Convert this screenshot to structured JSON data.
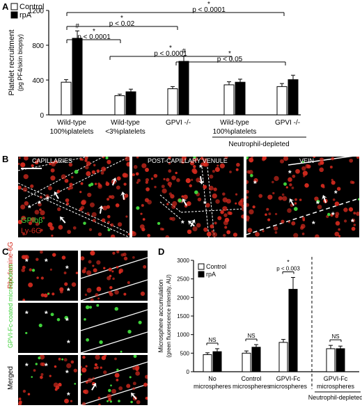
{
  "panels": {
    "a": "A",
    "b": "B",
    "c": "C",
    "d": "D"
  },
  "colors": {
    "control": "#ffffff",
    "rpA": "#000000",
    "red_cell": "#d42a1e",
    "green_cell": "#3fd13a"
  },
  "chart_data": [
    {
      "type": "bar",
      "panel": "A",
      "ylabel": "Platelet recruitment",
      "ylabel2": "(pg PF4/skin biopsy)",
      "ylim": [
        0,
        1200
      ],
      "yticks": [
        0,
        400,
        800,
        1200
      ],
      "legend": [
        "Control",
        "rpA"
      ],
      "legend_position": "top-left",
      "categories": [
        {
          "line1": "Wild-type",
          "line2": "100%platelets"
        },
        {
          "line1": "Wild-type",
          "line2": "<3%platelets"
        },
        {
          "line1": "GPVI -/-",
          "line2": ""
        },
        {
          "line1": "Wild-type",
          "line2": "100%platelets"
        },
        {
          "line1": "GPVI -/-",
          "line2": ""
        }
      ],
      "series": [
        {
          "name": "Control",
          "values": [
            375,
            220,
            300,
            345,
            325
          ],
          "errors": [
            30,
            18,
            25,
            35,
            35
          ]
        },
        {
          "name": "rpA",
          "values": [
            880,
            265,
            615,
            375,
            405
          ],
          "errors": [
            85,
            30,
            60,
            35,
            50
          ]
        }
      ],
      "hash_marks": [
        "#",
        "#"
      ],
      "group_label": "Neutrophil-depleted",
      "comparisons": [
        {
          "star": "*",
          "p": "p < 0.0001"
        },
        {
          "star": "*",
          "p": "p < 0.02"
        },
        {
          "star": "*",
          "p": "p < 0.0001"
        },
        {
          "star": "*",
          "p": "p < 0.0001"
        },
        {
          "star": "*",
          "p": "p < 0.05"
        }
      ]
    },
    {
      "type": "bar",
      "panel": "D",
      "ylabel": "Microsphere accumulation",
      "ylabel2": "(green fluorescence intensity, AU)",
      "ylim": [
        0,
        3000
      ],
      "yticks": [
        0,
        500,
        1000,
        1500,
        2000,
        2500,
        3000
      ],
      "legend": [
        "Control",
        "rpA"
      ],
      "legend_position": "top-left",
      "categories": [
        {
          "line1": "No",
          "line2": "microspheres"
        },
        {
          "line1": "Control",
          "line2": "microspheres"
        },
        {
          "line1": "GPVI-Fc",
          "line2": "microspheres"
        },
        {
          "line1": "GPVI-Fc",
          "line2": "microspheres"
        }
      ],
      "series": [
        {
          "name": "Control",
          "values": [
            460,
            500,
            790,
            620
          ],
          "errors": [
            50,
            60,
            80,
            90
          ]
        },
        {
          "name": "rpA",
          "values": [
            540,
            660,
            2220,
            620
          ],
          "errors": [
            80,
            70,
            320,
            70
          ]
        }
      ],
      "annotations": [
        {
          "text": "NS"
        },
        {
          "text": "NS"
        },
        {
          "text": "p < 0.003",
          "star": "*"
        },
        {
          "text": "NS"
        }
      ],
      "group_label": "Neutrophil-depleted"
    }
  ],
  "microscopy_b": {
    "capillaries": "CAPILLARIES",
    "venule": "POST-CAPILLARY VENULE",
    "vein": "VEIN",
    "stain_green": "GPIbβ",
    "stain_red": "Ly-6G"
  },
  "microscopy_c": {
    "row1": "Rhodamine-6G",
    "row2": "GPVI-Fc-coated microspheres",
    "row3": "Merged"
  }
}
